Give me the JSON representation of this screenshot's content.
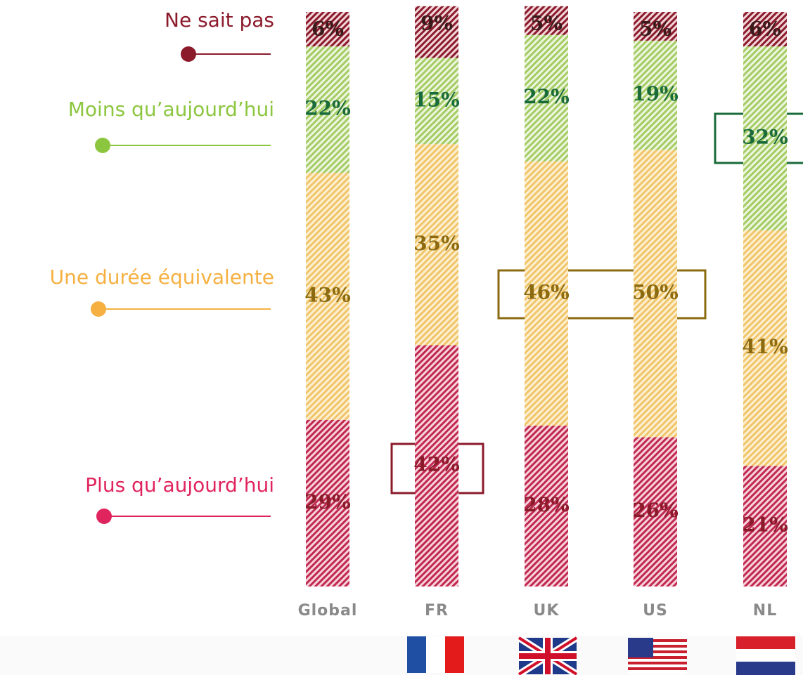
{
  "chart_data": {
    "type": "stacked_bar",
    "categories": [
      "Global",
      "FR",
      "UK",
      "US",
      "NL"
    ],
    "series": [
      {
        "name": "Plus qu’aujourd’hui",
        "color": "#e0245e",
        "values": [
          29,
          42,
          28,
          26,
          21
        ],
        "value_labels": [
          "29%",
          "42%",
          "28%",
          "26%",
          "21%"
        ]
      },
      {
        "name": "Une durée équivalente",
        "color": "#f5b041",
        "values": [
          43,
          35,
          46,
          50,
          41
        ],
        "value_labels": [
          "43%",
          "35%",
          "46%",
          "50%",
          "41%"
        ]
      },
      {
        "name": "Moins qu’aujourd’hui",
        "color": "#8cc63f",
        "values": [
          22,
          15,
          22,
          19,
          32
        ],
        "value_labels": [
          "22%",
          "15%",
          "22%",
          "19%",
          "32%"
        ]
      },
      {
        "name": "Ne sait pas",
        "color": "#8b1a2b",
        "values": [
          6,
          9,
          5,
          5,
          6
        ],
        "value_labels": [
          "6%",
          "9%",
          "5%",
          "5%",
          "6%"
        ]
      }
    ]
  }
}
